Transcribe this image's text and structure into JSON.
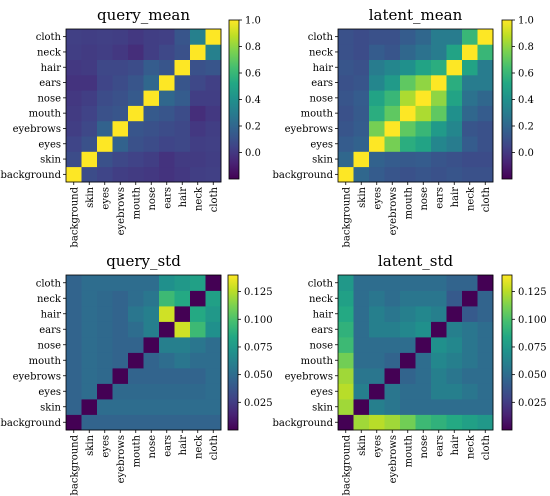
{
  "chart_data": [
    {
      "type": "heatmap",
      "title": "query_mean",
      "labels": [
        "background",
        "skin",
        "eyes",
        "eyebrows",
        "mouth",
        "nose",
        "ears",
        "hair",
        "neck",
        "cloth"
      ],
      "colorbar": {
        "min": -0.2,
        "max": 1.0,
        "ticks": [
          "0.0",
          "0.2",
          "0.4",
          "0.6",
          "0.8",
          "1.0"
        ],
        "tick_values": [
          0,
          0.2,
          0.4,
          0.6,
          0.8,
          1.0
        ]
      },
      "colormap": "viridis",
      "values": [
        [
          1.0,
          0.08,
          0.05,
          0.02,
          0.01,
          0.0,
          -0.02,
          0.0,
          0.02,
          0.03
        ],
        [
          0.08,
          1.0,
          0.1,
          0.06,
          0.04,
          0.02,
          -0.02,
          0.01,
          0.01,
          0.02
        ],
        [
          0.05,
          0.1,
          1.0,
          0.18,
          0.1,
          0.08,
          0.05,
          0.06,
          0.02,
          0.03
        ],
        [
          0.02,
          0.06,
          0.18,
          1.0,
          0.12,
          0.1,
          0.08,
          0.06,
          0.0,
          0.02
        ],
        [
          0.01,
          0.04,
          0.1,
          0.12,
          1.0,
          0.14,
          0.12,
          0.08,
          -0.04,
          0.0
        ],
        [
          0.0,
          0.02,
          0.08,
          0.1,
          0.14,
          1.0,
          0.2,
          0.15,
          0.02,
          0.02
        ],
        [
          -0.02,
          -0.02,
          0.05,
          0.08,
          0.12,
          0.2,
          1.0,
          0.12,
          0.06,
          0.03
        ],
        [
          0.0,
          0.01,
          0.06,
          0.06,
          0.08,
          0.15,
          0.12,
          1.0,
          0.1,
          0.12
        ],
        [
          0.02,
          0.01,
          0.02,
          0.0,
          -0.04,
          0.02,
          0.06,
          0.1,
          1.0,
          0.32
        ],
        [
          0.03,
          0.02,
          0.03,
          0.02,
          0.0,
          0.02,
          0.03,
          0.12,
          0.32,
          1.0
        ]
      ]
    },
    {
      "type": "heatmap",
      "title": "latent_mean",
      "labels": [
        "background",
        "skin",
        "eyes",
        "eyebrows",
        "mouth",
        "nose",
        "ears",
        "hair",
        "neck",
        "cloth"
      ],
      "colorbar": {
        "min": -0.2,
        "max": 1.0,
        "ticks": [
          "0.0",
          "0.2",
          "0.4",
          "0.6",
          "0.8",
          "1.0"
        ],
        "tick_values": [
          0,
          0.2,
          0.4,
          0.6,
          0.8,
          1.0
        ]
      },
      "colormap": "viridis",
      "values": [
        [
          1.0,
          0.2,
          0.15,
          0.12,
          0.1,
          0.12,
          0.1,
          0.12,
          0.1,
          0.1
        ],
        [
          0.2,
          1.0,
          0.18,
          0.15,
          0.14,
          0.15,
          0.12,
          0.1,
          0.08,
          0.08
        ],
        [
          0.15,
          0.18,
          1.0,
          0.75,
          0.55,
          0.5,
          0.35,
          0.3,
          0.15,
          0.1
        ],
        [
          0.12,
          0.15,
          0.75,
          1.0,
          0.7,
          0.6,
          0.45,
          0.35,
          0.12,
          0.1
        ],
        [
          0.1,
          0.14,
          0.55,
          0.7,
          1.0,
          0.85,
          0.7,
          0.4,
          0.2,
          0.15
        ],
        [
          0.12,
          0.15,
          0.5,
          0.6,
          0.85,
          1.0,
          0.8,
          0.5,
          0.25,
          0.2
        ],
        [
          0.1,
          0.12,
          0.35,
          0.45,
          0.7,
          0.8,
          1.0,
          0.55,
          0.3,
          0.3
        ],
        [
          0.12,
          0.1,
          0.3,
          0.35,
          0.4,
          0.5,
          0.55,
          1.0,
          0.5,
          0.3
        ],
        [
          0.1,
          0.08,
          0.15,
          0.12,
          0.2,
          0.25,
          0.3,
          0.5,
          1.0,
          0.6
        ],
        [
          0.1,
          0.08,
          0.1,
          0.1,
          0.15,
          0.2,
          0.3,
          0.3,
          0.6,
          1.0
        ]
      ]
    },
    {
      "type": "heatmap",
      "title": "query_std",
      "labels": [
        "background",
        "skin",
        "eyes",
        "eyebrows",
        "mouth",
        "nose",
        "ears",
        "hair",
        "neck",
        "cloth"
      ],
      "colorbar": {
        "min": 0.0,
        "max": 0.14,
        "ticks": [
          "0.025",
          "0.050",
          "0.075",
          "0.100",
          "0.125"
        ],
        "tick_values": [
          0.025,
          0.05,
          0.075,
          0.1,
          0.125
        ]
      },
      "colormap": "viridis",
      "values": [
        [
          0.0,
          0.045,
          0.045,
          0.045,
          0.045,
          0.045,
          0.045,
          0.045,
          0.045,
          0.045
        ],
        [
          0.045,
          0.0,
          0.05,
          0.05,
          0.05,
          0.05,
          0.05,
          0.05,
          0.05,
          0.05
        ],
        [
          0.045,
          0.05,
          0.0,
          0.048,
          0.048,
          0.048,
          0.048,
          0.048,
          0.048,
          0.05
        ],
        [
          0.045,
          0.05,
          0.048,
          0.0,
          0.045,
          0.045,
          0.045,
          0.045,
          0.045,
          0.05
        ],
        [
          0.045,
          0.05,
          0.048,
          0.045,
          0.0,
          0.045,
          0.05,
          0.055,
          0.05,
          0.05
        ],
        [
          0.045,
          0.05,
          0.048,
          0.045,
          0.045,
          0.0,
          0.06,
          0.06,
          0.055,
          0.05
        ],
        [
          0.045,
          0.05,
          0.048,
          0.045,
          0.05,
          0.06,
          0.0,
          0.13,
          0.095,
          0.07
        ],
        [
          0.045,
          0.05,
          0.048,
          0.045,
          0.055,
          0.06,
          0.13,
          0.0,
          0.085,
          0.075
        ],
        [
          0.045,
          0.05,
          0.048,
          0.045,
          0.05,
          0.055,
          0.095,
          0.085,
          0.0,
          0.08
        ],
        [
          0.045,
          0.05,
          0.05,
          0.05,
          0.05,
          0.05,
          0.07,
          0.075,
          0.08,
          0.0
        ]
      ]
    },
    {
      "type": "heatmap",
      "title": "latent_std",
      "labels": [
        "background",
        "skin",
        "eyes",
        "eyebrows",
        "mouth",
        "nose",
        "ears",
        "hair",
        "neck",
        "cloth"
      ],
      "colorbar": {
        "min": 0.0,
        "max": 0.14,
        "ticks": [
          "0.025",
          "0.050",
          "0.075",
          "0.100",
          "0.125"
        ],
        "tick_values": [
          0.025,
          0.05,
          0.075,
          0.1,
          0.125
        ]
      },
      "colormap": "viridis",
      "values": [
        [
          0.0,
          0.12,
          0.125,
          0.12,
          0.11,
          0.095,
          0.09,
          0.085,
          0.08,
          0.075
        ],
        [
          0.12,
          0.0,
          0.06,
          0.055,
          0.05,
          0.05,
          0.05,
          0.05,
          0.05,
          0.05
        ],
        [
          0.125,
          0.06,
          0.0,
          0.055,
          0.05,
          0.05,
          0.06,
          0.06,
          0.055,
          0.05
        ],
        [
          0.12,
          0.055,
          0.055,
          0.0,
          0.045,
          0.05,
          0.06,
          0.055,
          0.05,
          0.05
        ],
        [
          0.11,
          0.05,
          0.05,
          0.045,
          0.0,
          0.05,
          0.065,
          0.06,
          0.055,
          0.05
        ],
        [
          0.095,
          0.05,
          0.05,
          0.05,
          0.05,
          0.0,
          0.07,
          0.065,
          0.055,
          0.05
        ],
        [
          0.09,
          0.05,
          0.06,
          0.06,
          0.065,
          0.07,
          0.0,
          0.06,
          0.055,
          0.05
        ],
        [
          0.085,
          0.05,
          0.06,
          0.055,
          0.06,
          0.065,
          0.06,
          0.0,
          0.04,
          0.045
        ],
        [
          0.08,
          0.05,
          0.055,
          0.05,
          0.055,
          0.055,
          0.055,
          0.04,
          0.0,
          0.045
        ],
        [
          0.075,
          0.05,
          0.05,
          0.05,
          0.05,
          0.05,
          0.05,
          0.045,
          0.045,
          0.0
        ]
      ]
    }
  ]
}
